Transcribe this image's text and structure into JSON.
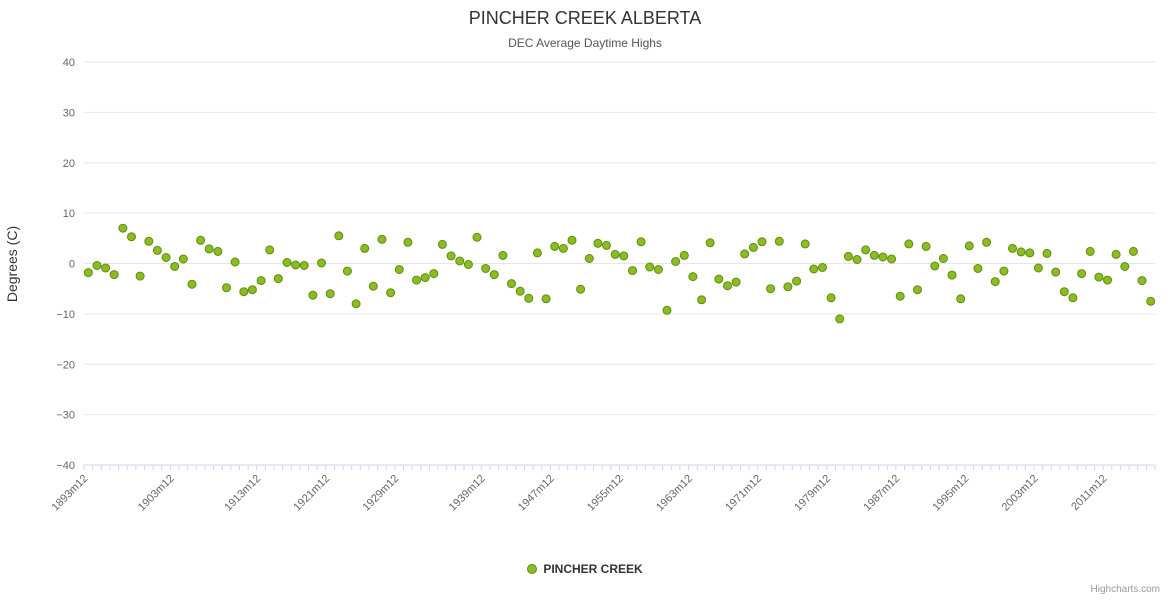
{
  "title": "PINCHER CREEK ALBERTA",
  "subtitle": "DEC Average Daytime Highs",
  "credits": "Highcharts.com",
  "legend": {
    "series_label": "PINCHER CREEK"
  },
  "colors": {
    "point_fill": "#8bbc21",
    "point_stroke": "#5f8c10",
    "grid_line": "#e6e6e6",
    "axis_line": "#ccd6eb",
    "tick": "#ccd6eb",
    "axis_label": "#666666"
  },
  "chart_data": {
    "type": "scatter",
    "title": "PINCHER CREEK ALBERTA",
    "subtitle": "DEC Average Daytime Highs",
    "xlabel": "",
    "ylabel": "Degrees (C)",
    "ylim": [
      -40,
      40
    ],
    "y_ticks": [
      40,
      30,
      20,
      10,
      0,
      -10,
      -20,
      -30,
      -40
    ],
    "grid": true,
    "legend_position": "bottom",
    "x_start_year": 1893,
    "x_suffix": "m12",
    "x_tick_labels": [
      "1893m12",
      "1903m12",
      "1913m12",
      "1921m12",
      "1929m12",
      "1939m12",
      "1947m12",
      "1955m12",
      "1963m12",
      "1971m12",
      "1979m12",
      "1987m12",
      "1995m12",
      "2003m12",
      "2011m12"
    ],
    "series": [
      {
        "name": "PINCHER CREEK",
        "values": [
          -1.8,
          -0.4,
          -0.9,
          -2.2,
          7.0,
          5.3,
          -2.5,
          4.4,
          2.6,
          1.2,
          -0.6,
          0.9,
          -4.1,
          4.6,
          2.9,
          2.4,
          -4.8,
          0.3,
          -5.6,
          -5.2,
          -3.4,
          2.7,
          -3.0,
          0.2,
          -0.3,
          -0.4,
          -6.3,
          0.1,
          -6.0,
          5.5,
          -1.5,
          -8.0,
          3.0,
          -4.5,
          4.8,
          -5.8,
          -1.2,
          4.2,
          -3.3,
          -2.8,
          -2.0,
          3.8,
          1.5,
          0.5,
          -0.2,
          5.2,
          -1.0,
          -2.2,
          1.6,
          -4.0,
          -5.5,
          -6.9,
          2.1,
          -7.0,
          3.4,
          3.0,
          4.6,
          -5.1,
          1.0,
          4.0,
          3.6,
          1.8,
          1.5,
          -1.4,
          4.3,
          -0.7,
          -1.2,
          -9.3,
          0.4,
          1.6,
          -2.6,
          -7.2,
          4.1,
          -3.1,
          -4.4,
          -3.7,
          1.9,
          3.2,
          4.3,
          -5.0,
          4.4,
          -4.6,
          -3.5,
          3.9,
          -1.1,
          -0.8,
          -6.8,
          -11.0,
          1.4,
          0.8,
          2.7,
          1.6,
          1.3,
          0.9,
          -6.5,
          3.9,
          -5.2,
          3.4,
          -0.5,
          1.0,
          -2.3,
          -7.0,
          3.5,
          -1.0,
          4.2,
          -3.6,
          -1.5,
          3.0,
          2.3,
          2.1,
          -0.9,
          2.0,
          -1.7,
          -5.6,
          -6.8,
          -2.0,
          2.4,
          -2.7,
          -3.3,
          1.8,
          -0.6,
          2.4,
          -3.4,
          -7.5
        ]
      }
    ]
  }
}
